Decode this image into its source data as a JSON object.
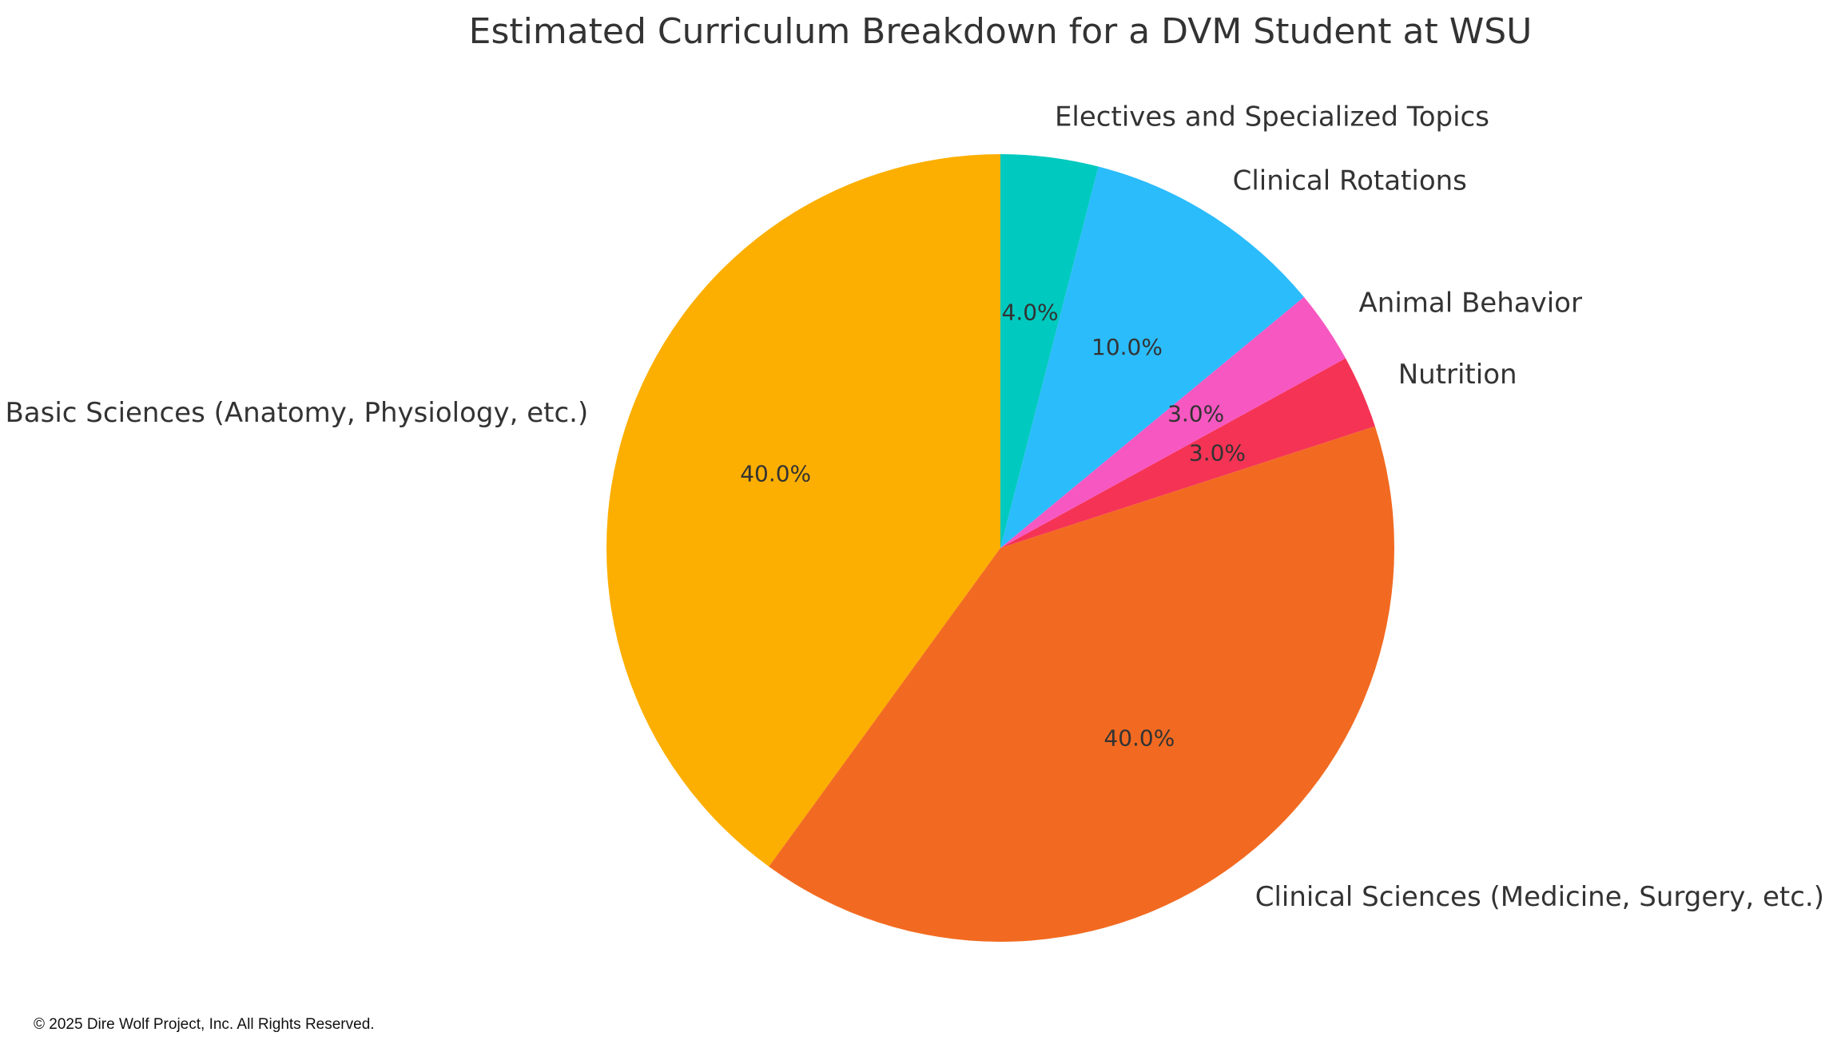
{
  "chart_data": {
    "type": "pie",
    "title": "Estimated Curriculum Breakdown for a DVM Student at WSU",
    "start_angle": "top, counter-clockwise",
    "slices": [
      {
        "label": "Basic Sciences (Anatomy, Physiology, etc.)",
        "value": 40.0,
        "pct_text": "40.0%",
        "color": "#FCAF00"
      },
      {
        "label": "Clinical Sciences (Medicine, Surgery, etc.)",
        "value": 40.0,
        "pct_text": "40.0%",
        "color": "#F26A21"
      },
      {
        "label": "Nutrition",
        "value": 3.0,
        "pct_text": "3.0%",
        "color": "#F53355"
      },
      {
        "label": "Animal Behavior",
        "value": 3.0,
        "pct_text": "3.0%",
        "color": "#F757C1"
      },
      {
        "label": "Clinical Rotations",
        "value": 10.0,
        "pct_text": "10.0%",
        "color": "#2BBCFC"
      },
      {
        "label": "Electives and Specialized Topics",
        "value": 4.0,
        "pct_text": "4.0%",
        "color": "#00C9BF"
      }
    ]
  },
  "footer": {
    "copyright": "© 2025 Dire Wolf Project, Inc. All Rights Reserved."
  }
}
